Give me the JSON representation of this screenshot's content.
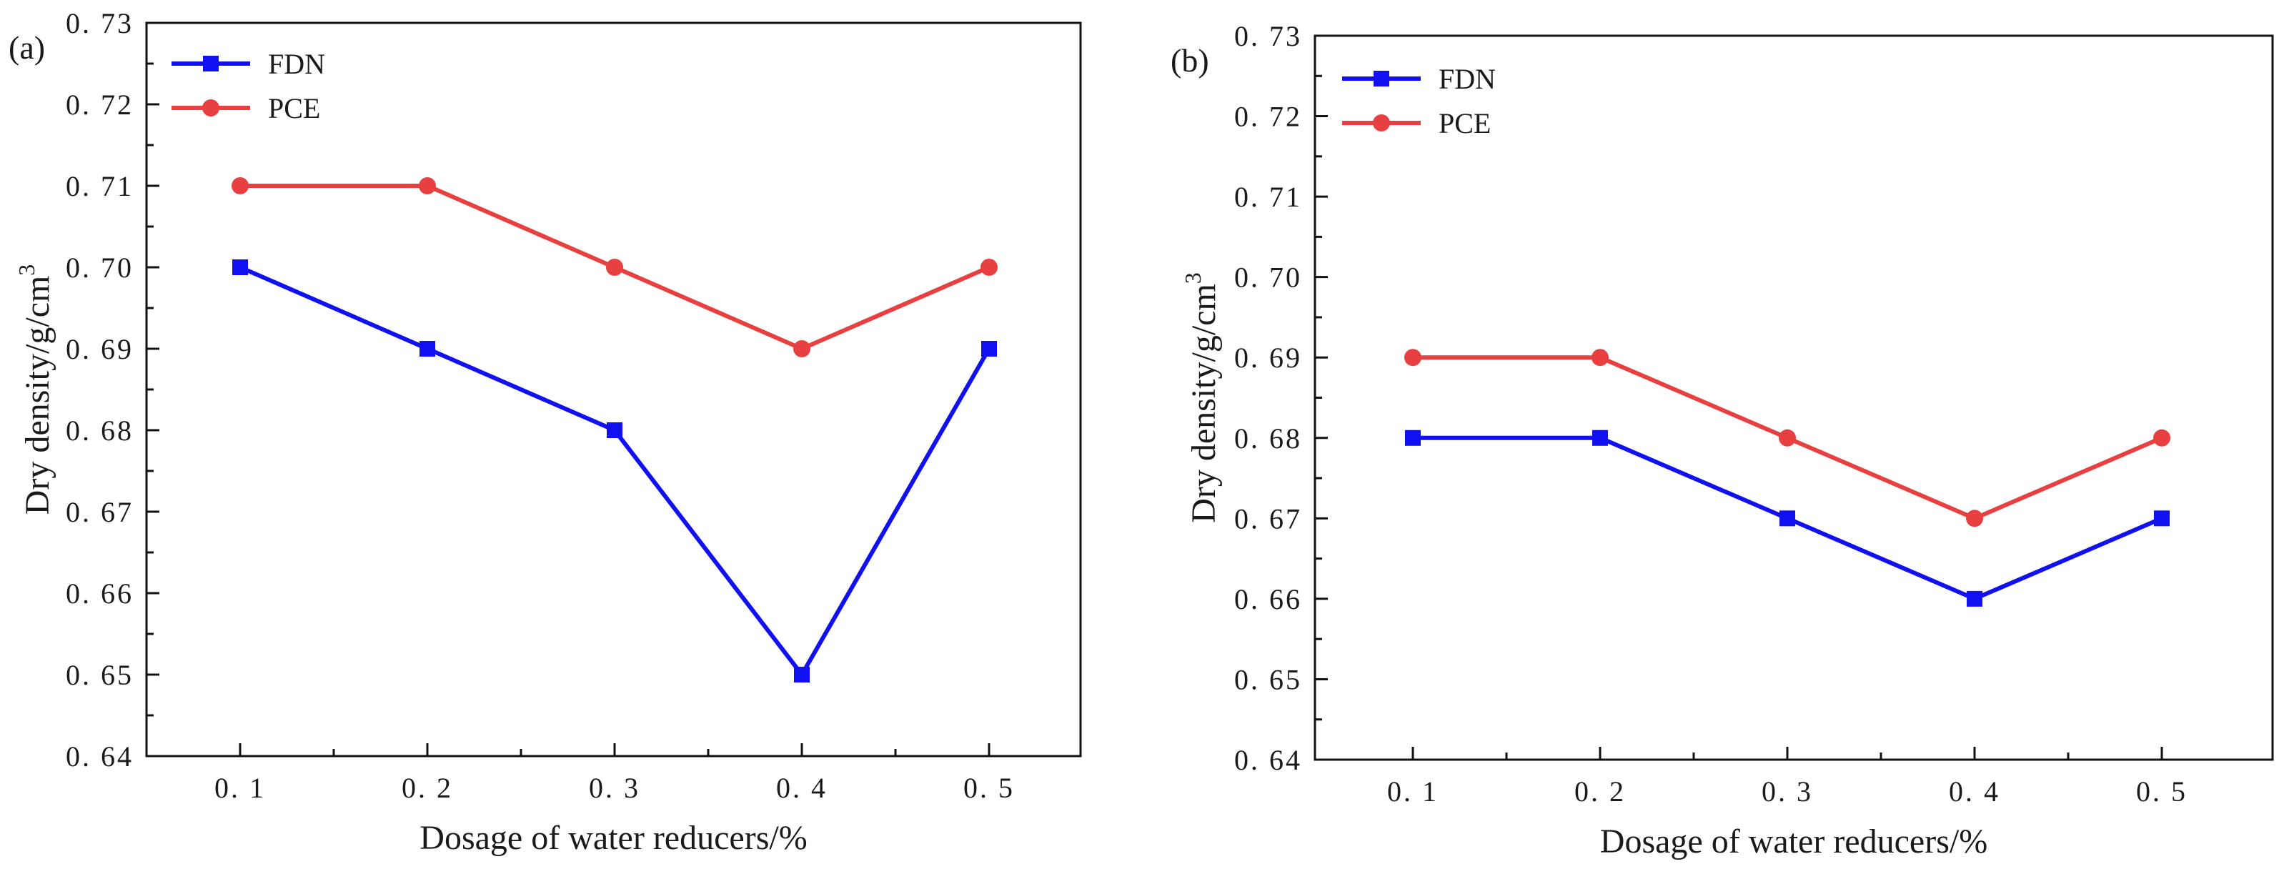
{
  "chart_data": [
    {
      "type": "line",
      "panel_label": "(a)",
      "xlabel": "Dosage of water reducers/%",
      "ylabel": "Dry density/g/cm",
      "ylabel_sup": "3",
      "categories": [
        "0. 1",
        "0. 2",
        "0. 3",
        "0. 4",
        "0. 5"
      ],
      "y_ticks": [
        "0. 64",
        "0. 65",
        "0. 66",
        "0. 67",
        "0. 68",
        "0. 69",
        "0. 70",
        "0. 71",
        "0. 72",
        "0. 73"
      ],
      "ylim": [
        0.64,
        0.73
      ],
      "legend_position": "top-left",
      "series": [
        {
          "name": "FDN",
          "color": "#1010f0",
          "marker": "square",
          "values": [
            0.7,
            0.69,
            0.68,
            0.65,
            0.69
          ]
        },
        {
          "name": "PCE",
          "color": "#e84040",
          "marker": "circle",
          "values": [
            0.71,
            0.71,
            0.7,
            0.69,
            0.7
          ]
        }
      ]
    },
    {
      "type": "line",
      "panel_label": "(b)",
      "xlabel": "Dosage of water reducers/%",
      "ylabel": "Dry density/g/cm",
      "ylabel_sup": "3",
      "categories": [
        "0. 1",
        "0. 2",
        "0. 3",
        "0. 4",
        "0. 5"
      ],
      "y_ticks": [
        "0. 64",
        "0. 65",
        "0. 66",
        "0. 67",
        "0. 68",
        "0. 69",
        "0. 70",
        "0. 71",
        "0. 72",
        "0. 73"
      ],
      "ylim": [
        0.64,
        0.73
      ],
      "legend_position": "top-left",
      "series": [
        {
          "name": "FDN",
          "color": "#1010f0",
          "marker": "square",
          "values": [
            0.68,
            0.68,
            0.67,
            0.66,
            0.67
          ]
        },
        {
          "name": "PCE",
          "color": "#e84040",
          "marker": "circle",
          "values": [
            0.69,
            0.69,
            0.68,
            0.67,
            0.68
          ]
        }
      ]
    }
  ]
}
